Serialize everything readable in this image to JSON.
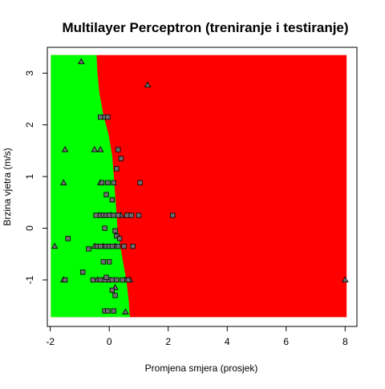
{
  "chart_data": {
    "type": "scatter",
    "title": "Multilayer Perceptron (treniranje i testiranje)",
    "xlabel": "Promjena smjera (prosjek)",
    "ylabel": "Brzina vjetra (m/s)",
    "xlim": [
      -2.1,
      8.4
    ],
    "ylim": [
      -1.9,
      3.5
    ],
    "xticks": [
      "-2",
      "0",
      "2",
      "4",
      "6",
      "8"
    ],
    "yticks": [
      "-1",
      "0",
      "1",
      "2",
      "3"
    ],
    "grid": false,
    "legend": "none",
    "colors": {
      "region_a": "#00ff00",
      "region_b": "#ff0000",
      "marker_fill": "#6e6e6e"
    },
    "decision_regions": {
      "x_range": [
        -1.98,
        8.05
      ],
      "y_range": [
        -1.72,
        3.35
      ],
      "boundary": [
        {
          "y": 3.35,
          "x": -0.43
        },
        {
          "y": 3.0,
          "x": -0.4
        },
        {
          "y": 2.6,
          "x": -0.33
        },
        {
          "y": 2.2,
          "x": -0.2
        },
        {
          "y": 1.8,
          "x": -0.02
        },
        {
          "y": 1.4,
          "x": 0.1
        },
        {
          "y": 1.0,
          "x": 0.16
        },
        {
          "y": 0.5,
          "x": 0.22
        },
        {
          "y": 0.0,
          "x": 0.28
        },
        {
          "y": -0.5,
          "x": 0.42
        },
        {
          "y": -1.0,
          "x": 0.58
        },
        {
          "y": -1.4,
          "x": 0.66
        },
        {
          "y": -1.72,
          "x": 0.7
        }
      ]
    },
    "series": [
      {
        "marker": "triangle",
        "points": [
          [
            -0.95,
            3.22
          ],
          [
            1.3,
            2.77
          ],
          [
            -1.5,
            1.52
          ],
          [
            -0.5,
            1.52
          ],
          [
            -0.3,
            1.52
          ],
          [
            -1.55,
            0.88
          ],
          [
            -0.3,
            0.88
          ],
          [
            -0.35,
            0.25
          ],
          [
            0.05,
            0.25
          ],
          [
            0.4,
            0.25
          ],
          [
            -1.85,
            -0.35
          ],
          [
            -0.5,
            -0.35
          ],
          [
            -0.2,
            -0.35
          ],
          [
            0.2,
            -0.35
          ],
          [
            -1.55,
            -1.0
          ],
          [
            -0.4,
            -1.0
          ],
          [
            0.55,
            -1.0
          ],
          [
            0.7,
            -1.0
          ],
          [
            8.0,
            -1.0
          ],
          [
            0.2,
            -1.15
          ],
          [
            0.55,
            -1.62
          ]
        ]
      },
      {
        "marker": "square",
        "points": [
          [
            -0.3,
            2.15
          ],
          [
            -0.15,
            2.15
          ],
          [
            -0.05,
            2.15
          ],
          [
            0.3,
            1.52
          ],
          [
            0.4,
            1.35
          ],
          [
            0.25,
            1.15
          ],
          [
            -0.25,
            0.88
          ],
          [
            -0.05,
            0.88
          ],
          [
            0.15,
            0.88
          ],
          [
            1.05,
            0.88
          ],
          [
            -0.1,
            0.65
          ],
          [
            0.1,
            0.55
          ],
          [
            -0.45,
            0.25
          ],
          [
            -0.3,
            0.25
          ],
          [
            -0.2,
            0.25
          ],
          [
            -0.1,
            0.25
          ],
          [
            0.0,
            0.25
          ],
          [
            0.15,
            0.25
          ],
          [
            0.3,
            0.25
          ],
          [
            0.6,
            0.25
          ],
          [
            0.75,
            0.25
          ],
          [
            1.0,
            0.25
          ],
          [
            2.15,
            0.25
          ],
          [
            -0.15,
            0.0
          ],
          [
            0.2,
            -0.05
          ],
          [
            0.25,
            -0.15
          ],
          [
            -1.4,
            -0.2
          ],
          [
            0.35,
            -0.2
          ],
          [
            -0.7,
            -0.4
          ],
          [
            -0.4,
            -0.35
          ],
          [
            -0.3,
            -0.35
          ],
          [
            -0.1,
            -0.35
          ],
          [
            0.0,
            -0.35
          ],
          [
            0.1,
            -0.35
          ],
          [
            0.3,
            -0.35
          ],
          [
            0.5,
            -0.35
          ],
          [
            0.8,
            -0.35
          ],
          [
            -1.5,
            -1.0
          ],
          [
            -0.9,
            -0.85
          ],
          [
            -0.2,
            -0.65
          ],
          [
            0.0,
            -0.65
          ],
          [
            -0.55,
            -1.0
          ],
          [
            -0.3,
            -1.0
          ],
          [
            -0.15,
            -1.0
          ],
          [
            0.0,
            -1.0
          ],
          [
            0.1,
            -1.0
          ],
          [
            0.25,
            -1.0
          ],
          [
            0.45,
            -1.0
          ],
          [
            0.65,
            -1.0
          ],
          [
            -0.1,
            -0.95
          ],
          [
            0.1,
            -1.2
          ],
          [
            0.2,
            -1.3
          ],
          [
            -0.15,
            -1.6
          ],
          [
            -0.05,
            -1.6
          ],
          [
            0.15,
            -1.6
          ]
        ]
      }
    ]
  }
}
